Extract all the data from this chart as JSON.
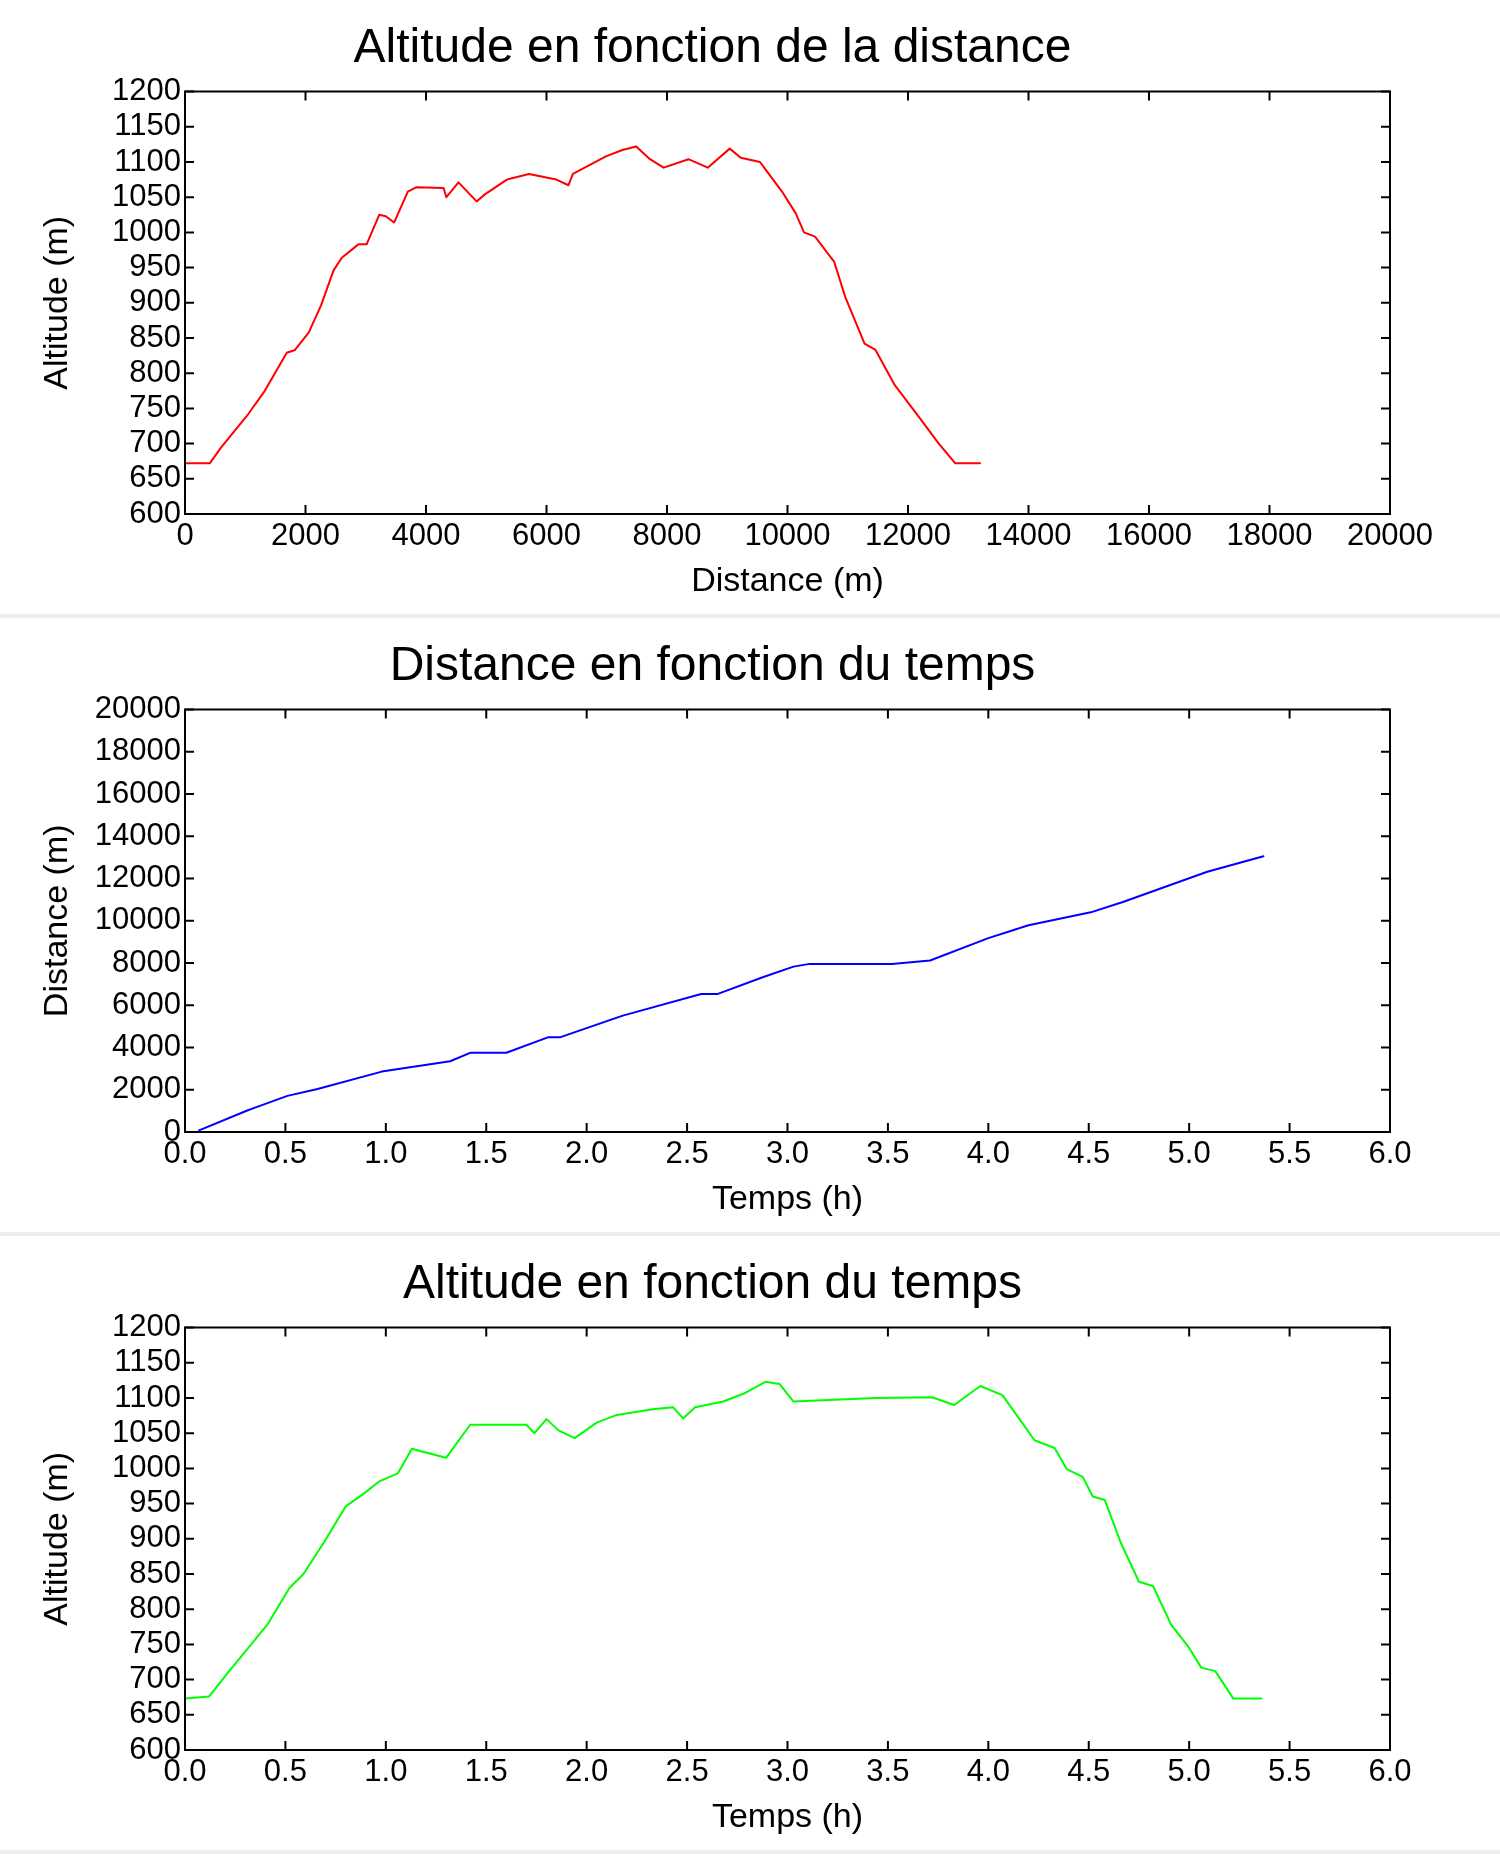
{
  "chart_data": [
    {
      "type": "line",
      "title": "Altitude en fonction de la distance",
      "xlabel": "Distance (m)",
      "ylabel": "Altitude (m)",
      "xlim": [
        0,
        20000
      ],
      "xticks": [
        0,
        2000,
        4000,
        6000,
        8000,
        10000,
        12000,
        14000,
        16000,
        18000,
        20000
      ],
      "ylim": [
        600,
        1200
      ],
      "yticks": [
        600,
        650,
        700,
        750,
        800,
        850,
        900,
        950,
        1000,
        1050,
        1100,
        1150,
        1200
      ],
      "grid": false,
      "legend": false,
      "marker": "none",
      "line_style": "solid",
      "series": [
        {
          "color": "#ff0000",
          "x": [
            0,
            411,
            594,
            1050,
            1324,
            1689,
            1826,
            2055,
            2256,
            2466,
            2603,
            2877,
            3014,
            3224,
            3333,
            3470,
            3699,
            3836,
            4292,
            4338,
            4539,
            4840,
            4977,
            5342,
            5708,
            6164,
            6365,
            6438,
            6986,
            7260,
            7489,
            7717,
            7945,
            8356,
            8676,
            9041,
            9224,
            9543,
            9909,
            10137,
            10274,
            10457,
            10776,
            10959,
            11279,
            11461,
            11781,
            12146,
            12511,
            12785,
            13196
          ],
          "values": [
            672,
            672,
            694,
            742,
            775,
            829,
            833,
            858,
            896,
            946,
            964,
            983,
            983,
            1025,
            1023,
            1014,
            1058,
            1064,
            1063,
            1050,
            1071,
            1044,
            1054,
            1075,
            1083,
            1075,
            1067,
            1083,
            1108,
            1117,
            1122,
            1104,
            1092,
            1104,
            1092,
            1119,
            1106,
            1100,
            1058,
            1027,
            1000,
            994,
            958,
            908,
            842,
            833,
            783,
            742,
            700,
            672,
            672
          ]
        }
      ]
    },
    {
      "type": "line",
      "title": "Distance en fonction du temps",
      "xlabel": "Temps (h)",
      "ylabel": "Distance (m)",
      "xlim": [
        0,
        6
      ],
      "xticks": [
        {
          "value": 0,
          "label": "0.0"
        },
        {
          "value": 0.5,
          "label": "0.5"
        },
        {
          "value": 1,
          "label": "1.0"
        },
        {
          "value": 1.5,
          "label": "1.5"
        },
        {
          "value": 2,
          "label": "2.0"
        },
        {
          "value": 2.5,
          "label": "2.5"
        },
        {
          "value": 3,
          "label": "3.0"
        },
        {
          "value": 3.5,
          "label": "3.5"
        },
        {
          "value": 4,
          "label": "4.0"
        },
        {
          "value": 4.5,
          "label": "4.5"
        },
        {
          "value": 5,
          "label": "5.0"
        },
        {
          "value": 5.5,
          "label": "5.5"
        },
        {
          "value": 6,
          "label": "6.0"
        }
      ],
      "ylim": [
        0,
        20000
      ],
      "yticks": [
        0,
        2000,
        4000,
        6000,
        8000,
        10000,
        12000,
        14000,
        16000,
        18000,
        20000
      ],
      "grid": false,
      "legend": false,
      "marker": "none",
      "line_style": "solid",
      "series": [
        {
          "color": "#0000ff",
          "x": [
            0.07,
            0.31,
            0.51,
            0.66,
            0.98,
            1.32,
            1.42,
            1.6,
            1.81,
            1.87,
            2.18,
            2.57,
            2.65,
            2.88,
            3.03,
            3.11,
            3.52,
            3.71,
            4.0,
            4.2,
            4.51,
            4.67,
            5.09,
            5.37
          ],
          "values": [
            80,
            1020,
            1710,
            2040,
            2860,
            3350,
            3750,
            3750,
            4490,
            4490,
            5510,
            6530,
            6530,
            7340,
            7830,
            7960,
            7960,
            8120,
            9180,
            9790,
            10400,
            10890,
            12320,
            13060
          ]
        }
      ]
    },
    {
      "type": "line",
      "title": "Altitude en fonction du temps",
      "xlabel": "Temps (h)",
      "ylabel": "Altitude (m)",
      "xlim": [
        0,
        6
      ],
      "xticks": [
        {
          "value": 0,
          "label": "0.0"
        },
        {
          "value": 0.5,
          "label": "0.5"
        },
        {
          "value": 1,
          "label": "1.0"
        },
        {
          "value": 1.5,
          "label": "1.5"
        },
        {
          "value": 2,
          "label": "2.0"
        },
        {
          "value": 2.5,
          "label": "2.5"
        },
        {
          "value": 3,
          "label": "3.0"
        },
        {
          "value": 3.5,
          "label": "3.5"
        },
        {
          "value": 4,
          "label": "4.0"
        },
        {
          "value": 4.5,
          "label": "4.5"
        },
        {
          "value": 5,
          "label": "5.0"
        },
        {
          "value": 5.5,
          "label": "5.5"
        },
        {
          "value": 6,
          "label": "6.0"
        }
      ],
      "ylim": [
        600,
        1200
      ],
      "yticks": [
        600,
        650,
        700,
        750,
        800,
        850,
        900,
        950,
        1000,
        1050,
        1100,
        1150,
        1200
      ],
      "grid": false,
      "legend": false,
      "marker": "none",
      "line_style": "solid",
      "series": [
        {
          "color": "#00ff00",
          "x": [
            0,
            0.12,
            0.22,
            0.41,
            0.52,
            0.59,
            0.69,
            0.8,
            0.88,
            0.97,
            1.06,
            1.13,
            1.18,
            1.3,
            1.42,
            1.7,
            1.74,
            1.8,
            1.86,
            1.94,
            2.05,
            2.15,
            2.33,
            2.43,
            2.48,
            2.54,
            2.68,
            2.78,
            2.89,
            2.96,
            3.03,
            3.44,
            3.72,
            3.83,
            3.96,
            4.07,
            4.14,
            4.23,
            4.33,
            4.39,
            4.47,
            4.52,
            4.58,
            4.66,
            4.75,
            4.82,
            4.91,
            5.0,
            5.06,
            5.13,
            5.22,
            5.36
          ],
          "values": [
            673,
            676,
            712,
            778,
            830,
            850,
            894,
            946,
            962,
            982,
            993,
            1028,
            1024,
            1015,
            1062,
            1062,
            1050,
            1070,
            1054,
            1043,
            1065,
            1076,
            1084,
            1087,
            1071,
            1087,
            1095,
            1106,
            1123,
            1120,
            1095,
            1100,
            1101,
            1090,
            1117,
            1104,
            1076,
            1040,
            1029,
            999,
            988,
            960,
            955,
            894,
            839,
            833,
            778,
            745,
            717,
            712,
            673,
            673
          ]
        }
      ]
    }
  ]
}
